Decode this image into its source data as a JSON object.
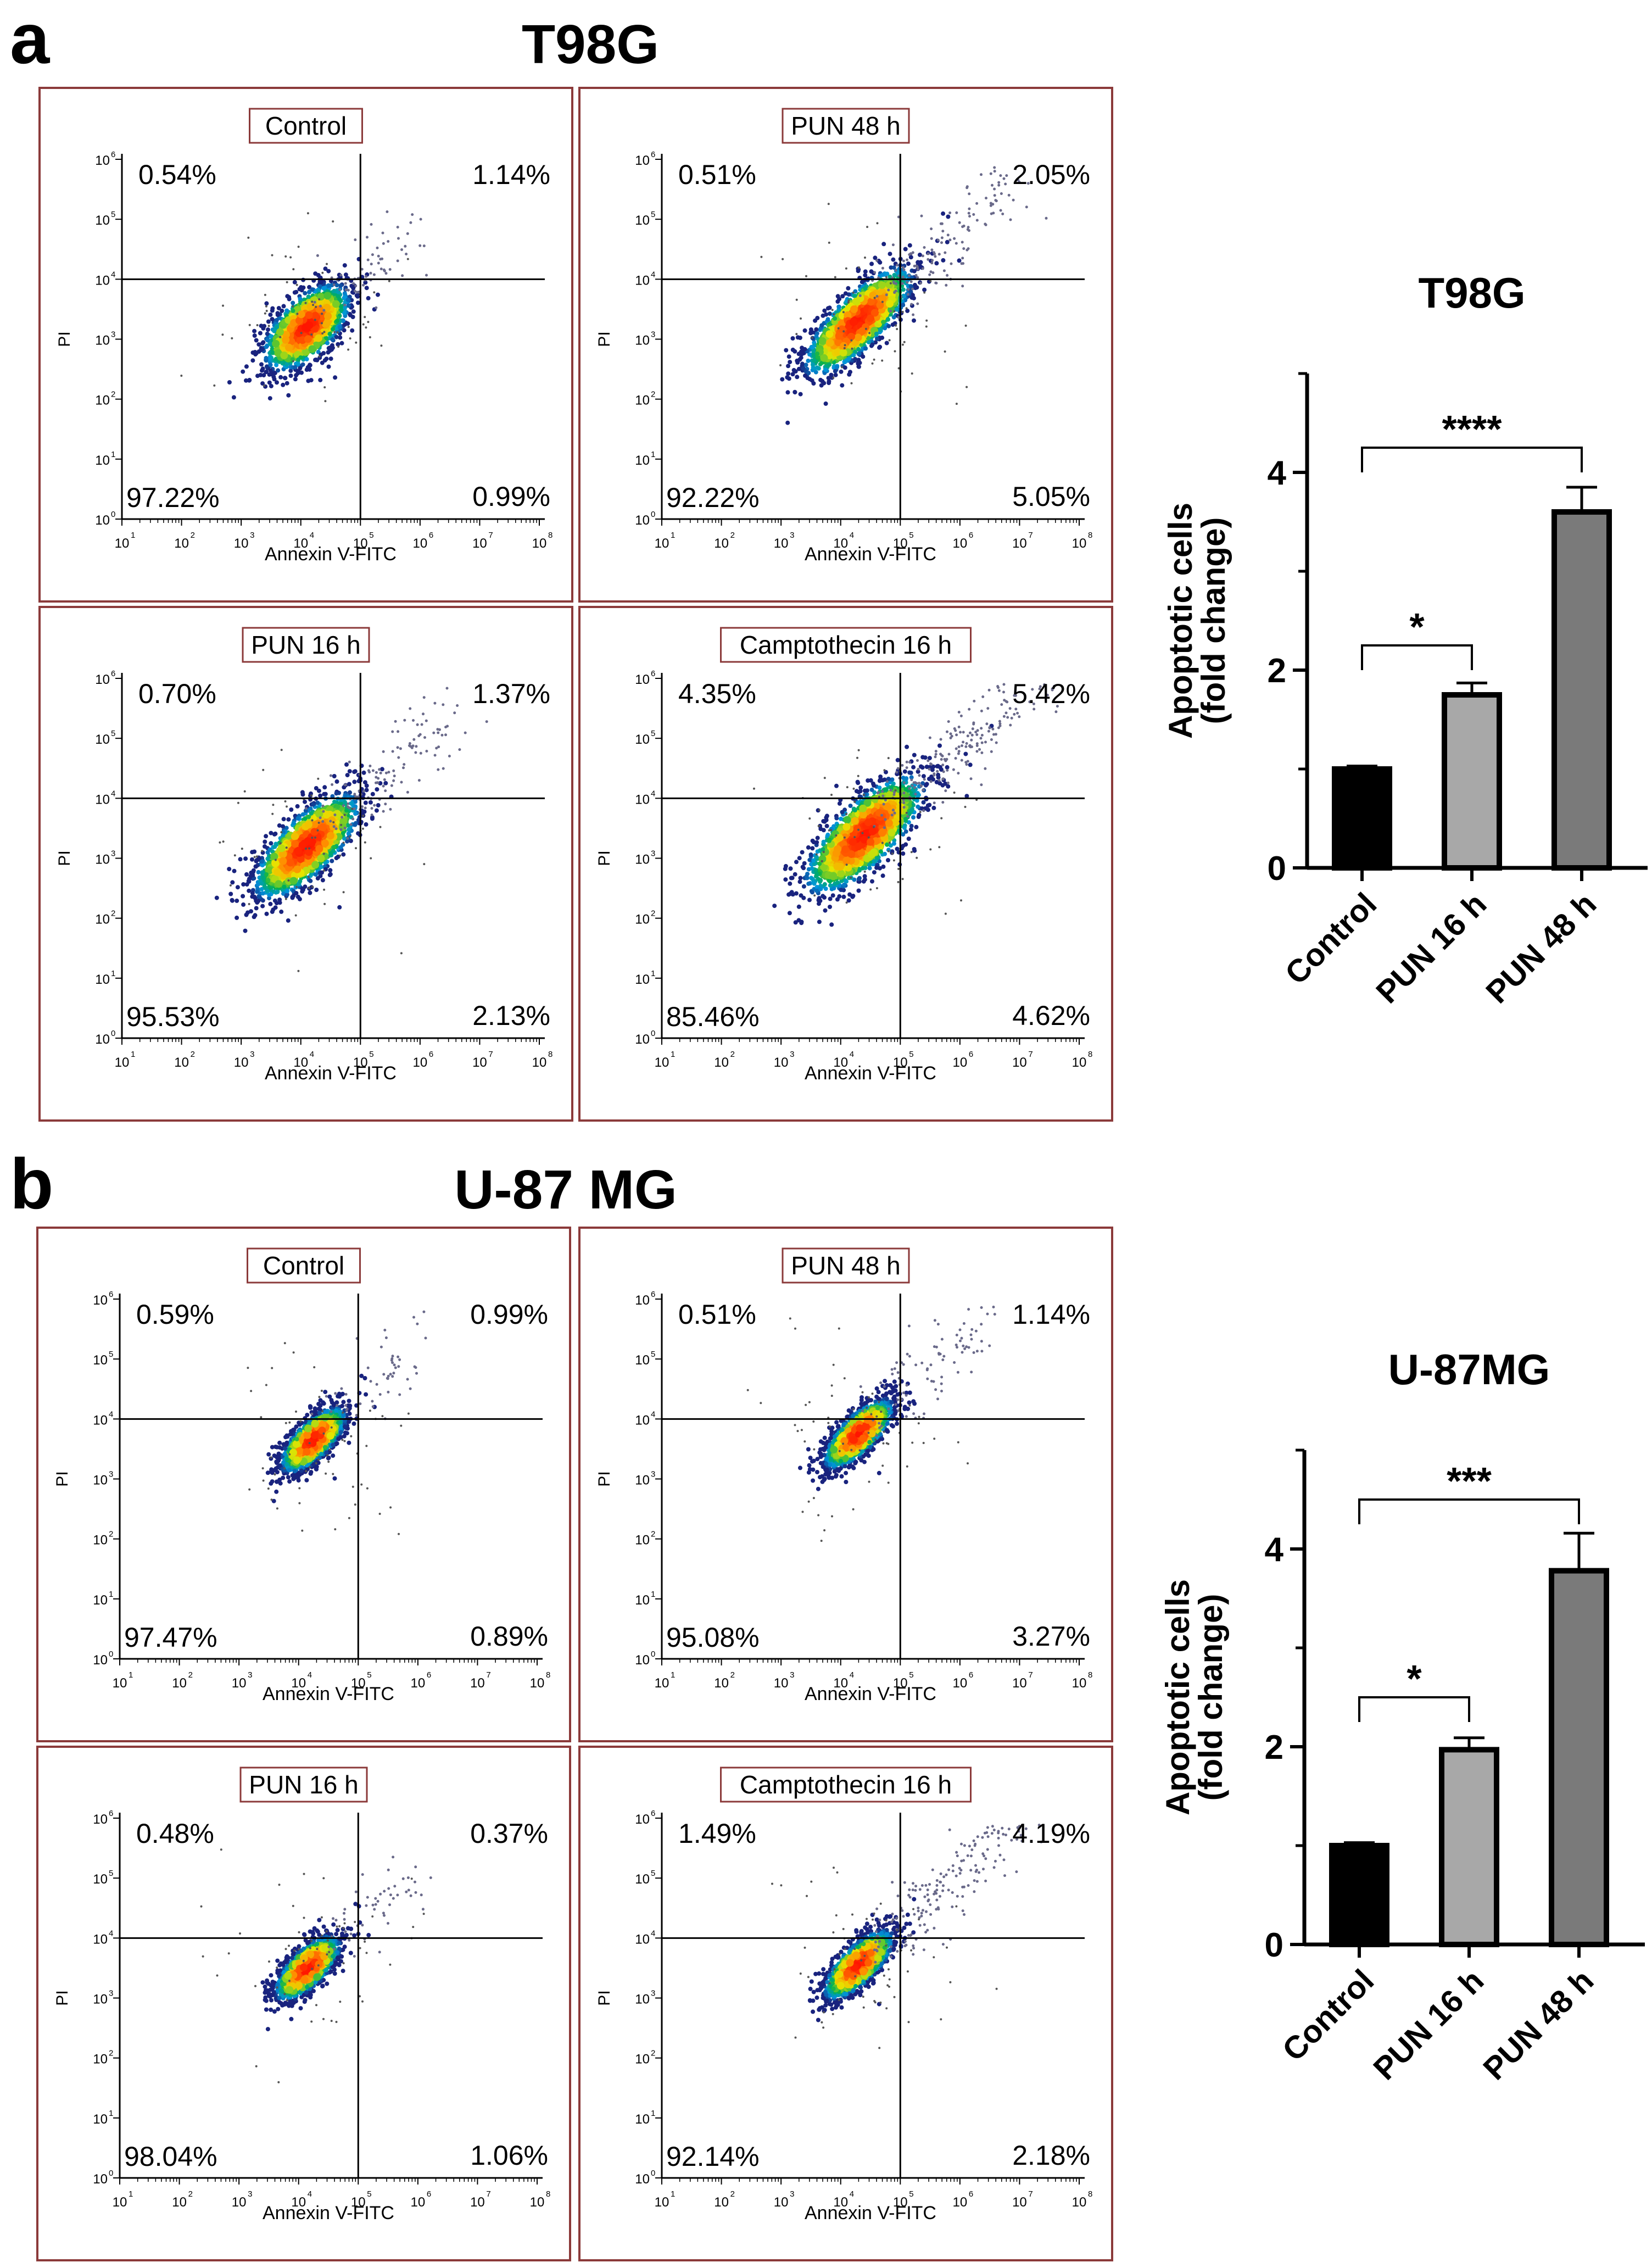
{
  "colors": {
    "panel_border": "#8b3a3a",
    "axis": "#000000",
    "bar_control": "#000000",
    "bar_pun16": "#a8a8a8",
    "bar_pun48": "#7a7a7a",
    "density_low": "#1a237e",
    "density_mid": "#00b050",
    "density_high": "#ff1a00"
  },
  "icons": [
    "flow-density-cloud"
  ],
  "chart_data": [
    {
      "type": "scatter",
      "panel_letter": "a",
      "title": "T98G",
      "xlabel": "Annexin V-FITC",
      "ylabel": "PI",
      "tick_base": "10",
      "x_ticks": [
        "1",
        "2",
        "3",
        "4",
        "5",
        "6",
        "7",
        "8"
      ],
      "y_ticks": [
        "0",
        "1",
        "2",
        "3",
        "4",
        "5",
        "6"
      ],
      "panels": [
        {
          "label": "Control",
          "upper_left": "0.54%",
          "upper_right": "1.14%",
          "lower_left": "97.22%",
          "lower_right": "0.99%",
          "center_x": 4.1,
          "center_y": 3.2,
          "spread": 0.55,
          "extent": 0.9,
          "tail": 0.25
        },
        {
          "label": "PUN 48 h",
          "upper_left": "0.51%",
          "upper_right": "2.05%",
          "lower_left": "92.22%",
          "lower_right": "5.05%",
          "center_x": 4.3,
          "center_y": 3.3,
          "spread": 0.5,
          "extent": 1.2,
          "tail": 0.6
        },
        {
          "label": "PUN 16 h",
          "upper_left": "0.70%",
          "upper_right": "1.37%",
          "lower_left": "95.53%",
          "lower_right": "2.13%",
          "center_x": 4.1,
          "center_y": 3.2,
          "spread": 0.55,
          "extent": 1.15,
          "tail": 0.5
        },
        {
          "label": "Camptothecin 16 h",
          "upper_left": "4.35%",
          "upper_right": "5.42%",
          "lower_left": "85.46%",
          "lower_right": "4.62%",
          "center_x": 4.4,
          "center_y": 3.4,
          "spread": 0.6,
          "extent": 1.3,
          "tail": 0.85
        }
      ]
    },
    {
      "type": "bar",
      "title": "T98G",
      "ylabel": "Apoptotic cells",
      "ylabel2": "(fold change)",
      "categories": [
        "Control",
        "PUN 16 h",
        "PUN 48 h"
      ],
      "values": [
        1.0,
        1.75,
        3.6
      ],
      "errors": [
        0.03,
        0.12,
        0.25
      ],
      "ylim": [
        0,
        5
      ],
      "yticks": [
        "0",
        "2",
        "4"
      ],
      "significance": [
        {
          "from": 0,
          "to": 1,
          "label": "*",
          "y": 2.25
        },
        {
          "from": 0,
          "to": 2,
          "label": "****",
          "y": 4.25
        }
      ]
    },
    {
      "type": "scatter",
      "panel_letter": "b",
      "title": "U-87 MG",
      "xlabel": "Annexin V-FITC",
      "ylabel": "PI",
      "tick_base": "10",
      "x_ticks": [
        "1",
        "2",
        "3",
        "4",
        "5",
        "6",
        "7",
        "8"
      ],
      "y_ticks": [
        "0",
        "1",
        "2",
        "3",
        "4",
        "5",
        "6"
      ],
      "panels": [
        {
          "label": "Control",
          "upper_left": "0.59%",
          "upper_right": "0.99%",
          "lower_left": "97.47%",
          "lower_right": "0.89%",
          "center_x": 4.25,
          "center_y": 3.65,
          "spread": 0.35,
          "extent": 0.7,
          "tail": 0.2
        },
        {
          "label": "PUN 48 h",
          "upper_left": "0.51%",
          "upper_right": "1.14%",
          "lower_left": "95.08%",
          "lower_right": "3.27%",
          "center_x": 4.3,
          "center_y": 3.75,
          "spread": 0.35,
          "extent": 0.75,
          "tail": 0.35
        },
        {
          "label": "PUN 16 h",
          "upper_left": "0.48%",
          "upper_right": "0.37%",
          "lower_left": "98.04%",
          "lower_right": "1.06%",
          "center_x": 4.15,
          "center_y": 3.5,
          "spread": 0.35,
          "extent": 0.7,
          "tail": 0.2
        },
        {
          "label": "Camptothecin 16 h",
          "upper_left": "1.49%",
          "upper_right": "4.19%",
          "lower_left": "92.14%",
          "lower_right": "2.18%",
          "center_x": 4.3,
          "center_y": 3.55,
          "spread": 0.35,
          "extent": 0.75,
          "tail": 0.8
        }
      ]
    },
    {
      "type": "bar",
      "title": "U-87MG",
      "ylabel": "Apoptotic cells",
      "ylabel2": "(fold change)",
      "categories": [
        "Control",
        "PUN 16 h",
        "PUN 48 h"
      ],
      "values": [
        1.0,
        1.97,
        3.78
      ],
      "errors": [
        0.03,
        0.12,
        0.38
      ],
      "ylim": [
        0,
        5
      ],
      "yticks": [
        "0",
        "2",
        "4"
      ],
      "significance": [
        {
          "from": 0,
          "to": 1,
          "label": "*",
          "y": 2.5
        },
        {
          "from": 0,
          "to": 2,
          "label": "***",
          "y": 4.5
        }
      ]
    }
  ]
}
